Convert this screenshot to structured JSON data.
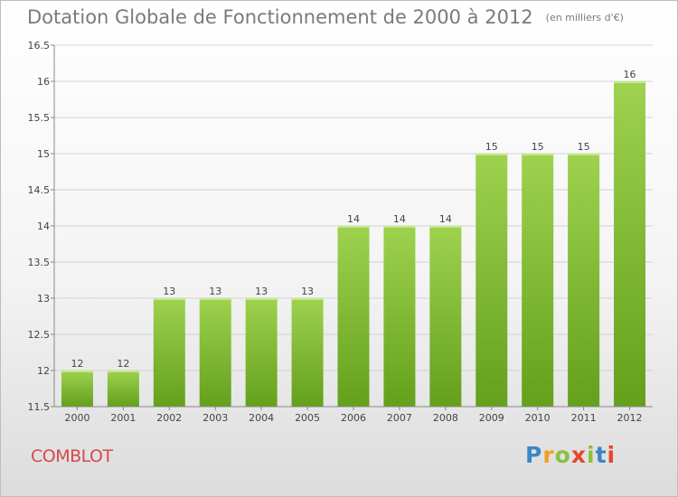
{
  "header": {
    "title": "Dotation Globale de Fonctionnement de 2000 à 2012",
    "unit": "(en milliers d'€)"
  },
  "footer": {
    "town": "COMBLOT",
    "logo": {
      "letters": [
        "P",
        "r",
        "o",
        "x",
        "i",
        "t",
        "i"
      ],
      "colors": [
        "#3a86c8",
        "#f0a020",
        "#8cc040",
        "#e8452c",
        "#8cc040",
        "#3a86c8",
        "#e8452c"
      ]
    }
  },
  "colors": {
    "bar_top": "#9ed24f",
    "bar_bottom": "#64a01c",
    "title": "#7a7a7a",
    "town": "#d6484f",
    "grid": "#d2d2d2",
    "axis_text": "#444444"
  },
  "chart_data": {
    "type": "bar",
    "categories": [
      "2000",
      "2001",
      "2002",
      "2003",
      "2004",
      "2005",
      "2006",
      "2007",
      "2008",
      "2009",
      "2010",
      "2011",
      "2012"
    ],
    "values": [
      12,
      12,
      13,
      13,
      13,
      13,
      14,
      14,
      14,
      15,
      15,
      15,
      16
    ],
    "data_labels": [
      "12",
      "12",
      "13",
      "13",
      "13",
      "13",
      "14",
      "14",
      "14",
      "15",
      "15",
      "15",
      "16"
    ],
    "ylim": [
      11.5,
      16.5
    ],
    "yticks": [
      11.5,
      12,
      12.5,
      13,
      13.5,
      14,
      14.5,
      15,
      15.5,
      16,
      16.5
    ],
    "ytick_labels": [
      "11.5",
      "12",
      "12.5",
      "13",
      "13.5",
      "14",
      "14.5",
      "15",
      "15.5",
      "16",
      "16.5"
    ],
    "grid": true,
    "title": "Dotation Globale de Fonctionnement de 2000 à 2012",
    "xlabel": "",
    "ylabel": ""
  }
}
